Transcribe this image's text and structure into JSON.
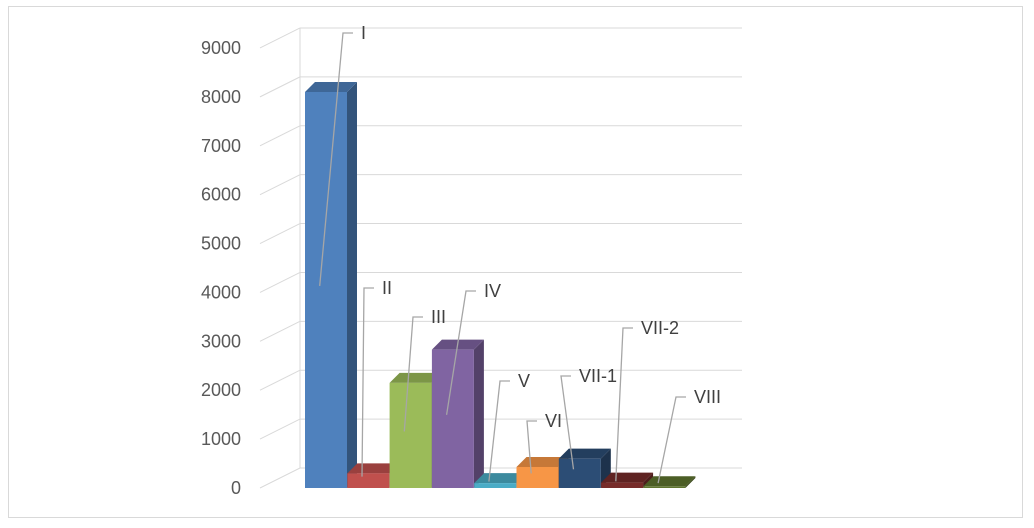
{
  "chart_data": {
    "type": "bar",
    "title": "",
    "xlabel": "",
    "ylabel": "",
    "categories": [
      "I",
      "II",
      "III",
      "IV",
      "V",
      "VI",
      "VII-1",
      "VII-2",
      "VIII"
    ],
    "values": [
      8100,
      300,
      2150,
      2830,
      100,
      430,
      600,
      110,
      35
    ],
    "ylim": [
      0,
      9000
    ],
    "yticks": [
      "0",
      "1000",
      "2000",
      "3000",
      "4000",
      "5000",
      "6000",
      "7000",
      "8000",
      "9000"
    ],
    "grid": true,
    "legend": "none",
    "colors": [
      "#4F81BD",
      "#C0504D",
      "#9BBB59",
      "#8064A2",
      "#4BACC6",
      "#F79646",
      "#2C4D75",
      "#772C2A",
      "#5F7530"
    ]
  }
}
